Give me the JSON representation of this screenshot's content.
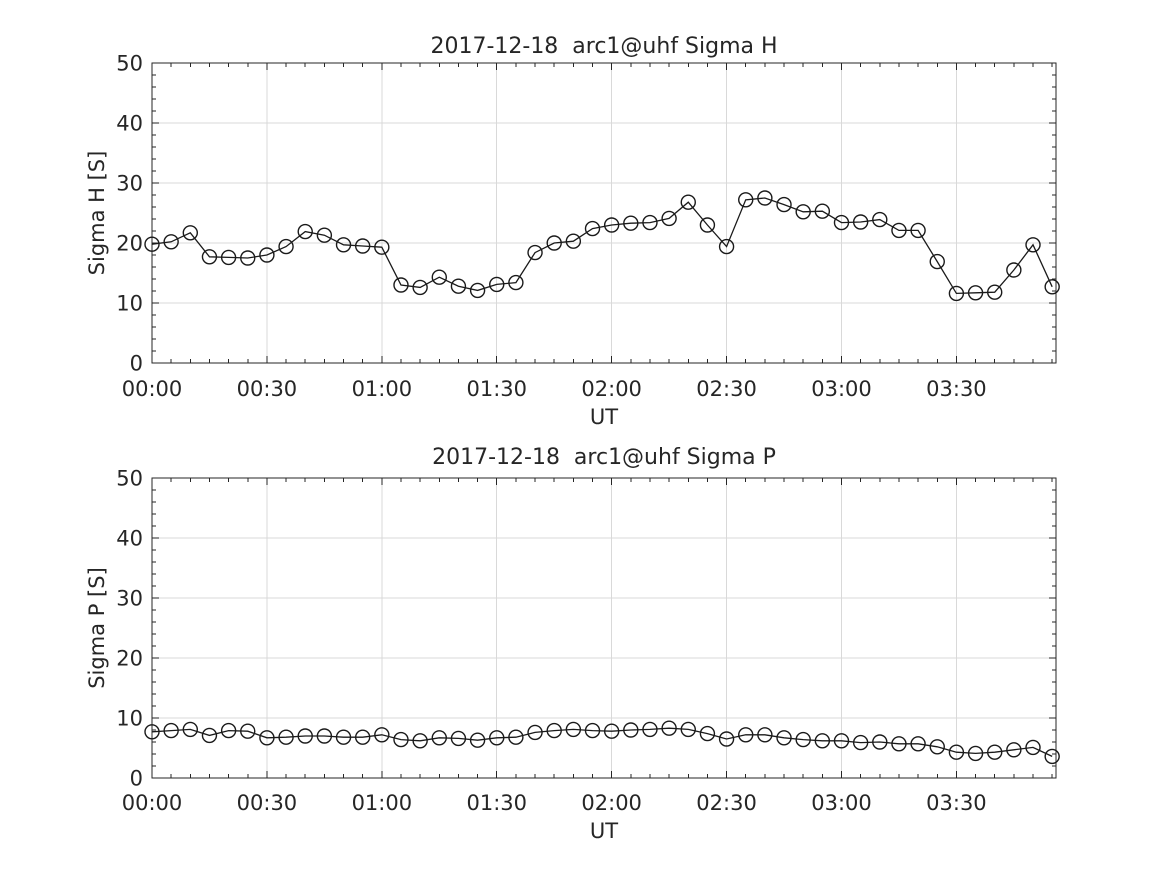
{
  "styles": {
    "background": "#ffffff",
    "line_color": "#1a1a1a",
    "grid_color": "#d9d9d9",
    "axis_color": "#262626",
    "text_color": "#262626"
  },
  "chart_data": [
    {
      "type": "line",
      "name": "sigma-h",
      "title": "2017-12-18  arc1@uhf Sigma H",
      "xlabel": "UT",
      "ylabel": "Sigma H [S]",
      "ylim": [
        0,
        50
      ],
      "xlim_minutes": [
        0,
        236
      ],
      "y_major_ticks": [
        0,
        10,
        20,
        30,
        40,
        50
      ],
      "y_minor_step": 2,
      "x_major_ticks_minutes": [
        0,
        30,
        60,
        90,
        120,
        150,
        180,
        210
      ],
      "x_tick_labels": [
        "00:00",
        "00:30",
        "01:00",
        "01:30",
        "02:00",
        "02:30",
        "03:00",
        "03:30"
      ],
      "x_minor_step_minutes": 5,
      "grid": true,
      "legend": "none",
      "marker": "open-circle",
      "x_minutes": [
        0,
        5,
        10,
        15,
        20,
        25,
        30,
        35,
        40,
        45,
        50,
        55,
        60,
        65,
        70,
        75,
        80,
        85,
        90,
        95,
        100,
        105,
        110,
        115,
        120,
        125,
        130,
        135,
        140,
        145,
        150,
        155,
        160,
        165,
        170,
        175,
        180,
        185,
        190,
        195,
        200,
        205,
        210,
        215,
        220,
        225,
        230,
        235
      ],
      "values": [
        19.8,
        20.2,
        21.7,
        17.7,
        17.6,
        17.5,
        18.0,
        19.4,
        21.9,
        21.3,
        19.7,
        19.5,
        19.3,
        13.0,
        12.6,
        14.3,
        12.8,
        12.1,
        13.1,
        13.4,
        18.4,
        20.0,
        20.3,
        22.4,
        23.0,
        23.3,
        23.4,
        24.1,
        26.8,
        23.0,
        19.4,
        27.2,
        27.5,
        26.4,
        25.2,
        25.3,
        23.4,
        23.5,
        23.9,
        22.1,
        22.1,
        16.9,
        11.6,
        11.7,
        11.8,
        15.5,
        19.7,
        12.7
      ]
    },
    {
      "type": "line",
      "name": "sigma-p",
      "title": "2017-12-18  arc1@uhf Sigma P",
      "xlabel": "UT",
      "ylabel": "Sigma P [S]",
      "ylim": [
        0,
        50
      ],
      "xlim_minutes": [
        0,
        236
      ],
      "y_major_ticks": [
        0,
        10,
        20,
        30,
        40,
        50
      ],
      "y_minor_step": 2,
      "x_major_ticks_minutes": [
        0,
        30,
        60,
        90,
        120,
        150,
        180,
        210
      ],
      "x_tick_labels": [
        "00:00",
        "00:30",
        "01:00",
        "01:30",
        "02:00",
        "02:30",
        "03:00",
        "03:30"
      ],
      "x_minor_step_minutes": 5,
      "grid": true,
      "legend": "none",
      "marker": "open-circle",
      "x_minutes": [
        0,
        5,
        10,
        15,
        20,
        25,
        30,
        35,
        40,
        45,
        50,
        55,
        60,
        65,
        70,
        75,
        80,
        85,
        90,
        95,
        100,
        105,
        110,
        115,
        120,
        125,
        130,
        135,
        140,
        145,
        150,
        155,
        160,
        165,
        170,
        175,
        180,
        185,
        190,
        195,
        200,
        205,
        210,
        215,
        220,
        225,
        230,
        235
      ],
      "values": [
        7.7,
        7.9,
        8.1,
        7.1,
        7.9,
        7.8,
        6.7,
        6.8,
        7.0,
        7.0,
        6.8,
        6.8,
        7.2,
        6.4,
        6.2,
        6.7,
        6.6,
        6.3,
        6.7,
        6.8,
        7.6,
        7.9,
        8.1,
        7.9,
        7.8,
        8.0,
        8.1,
        8.3,
        8.1,
        7.4,
        6.5,
        7.2,
        7.2,
        6.7,
        6.4,
        6.2,
        6.2,
        5.9,
        6.0,
        5.7,
        5.7,
        5.2,
        4.3,
        4.1,
        4.3,
        4.7,
        5.1,
        3.6
      ]
    }
  ]
}
